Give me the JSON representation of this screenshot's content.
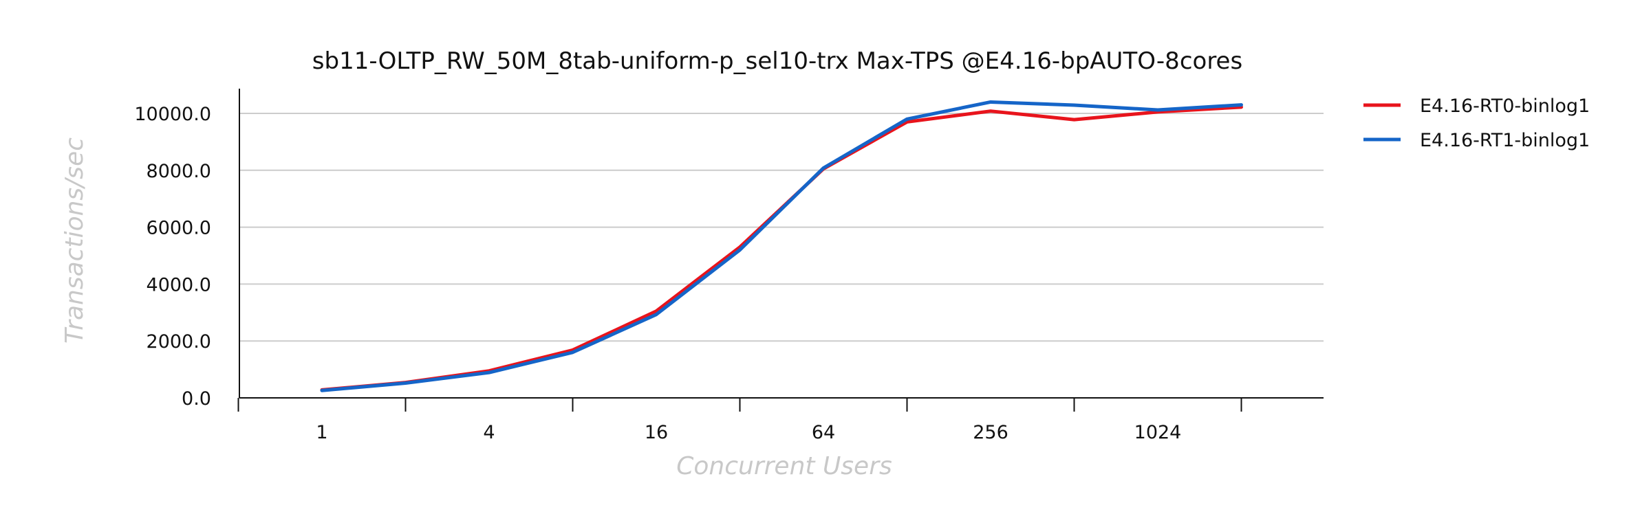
{
  "chart_data": {
    "type": "line",
    "title": "sb11-OLTP_RW_50M_8tab-uniform-p_sel10-trx Max-TPS @E4.16-bpAUTO-8cores",
    "xlabel": "Concurrent Users",
    "ylabel": "Transactions/sec",
    "x": [
      1,
      2,
      4,
      8,
      16,
      32,
      64,
      128,
      256,
      512,
      1024,
      2048
    ],
    "x_tick_labels": [
      "1",
      "4",
      "16",
      "64",
      "256",
      "1024"
    ],
    "x_scale": "log2",
    "y_tick_labels": [
      "0.0",
      "2000.0",
      "4000.0",
      "6000.0",
      "8000.0",
      "10000.0"
    ],
    "ylim": [
      0,
      10000
    ],
    "grid": "horizontal",
    "legend_position": "right",
    "series": [
      {
        "name": "E4.16-RT0-binlog1",
        "color": "#e8141c",
        "values": [
          280,
          540,
          950,
          1680,
          3050,
          5300,
          8050,
          9700,
          10080,
          9780,
          10050,
          10220
        ]
      },
      {
        "name": "E4.16-RT1-binlog1",
        "color": "#1565c8",
        "values": [
          260,
          520,
          890,
          1600,
          2930,
          5200,
          8080,
          9800,
          10400,
          10290,
          10120,
          10300
        ]
      }
    ]
  }
}
